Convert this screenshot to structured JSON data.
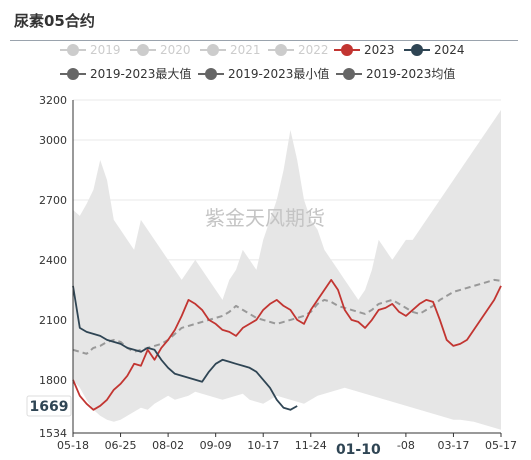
{
  "title": "尿素05合约",
  "watermark": "紫金天风期货",
  "legend": [
    {
      "name": "2019",
      "color": "#cccccc",
      "active": false
    },
    {
      "name": "2020",
      "color": "#cccccc",
      "active": false
    },
    {
      "name": "2021",
      "color": "#cccccc",
      "active": false
    },
    {
      "name": "2022",
      "color": "#cccccc",
      "active": false
    },
    {
      "name": "2023",
      "color": "#c23531",
      "active": true
    },
    {
      "name": "2024",
      "color": "#2f4554",
      "active": true
    },
    {
      "name": "2019-2023最大值",
      "color": "#666666",
      "active": true
    },
    {
      "name": "2019-2023最小值",
      "color": "#666666",
      "active": true
    },
    {
      "name": "2019-2023均值",
      "color": "#666666",
      "active": true
    }
  ],
  "chart_data": {
    "type": "line",
    "y_axis": {
      "min": 1534,
      "max": 3200,
      "ticks": [
        1534,
        1800,
        2100,
        2400,
        2700,
        3000,
        3200
      ]
    },
    "x_axis": {
      "labels": [
        "05-18",
        "06-25",
        "08-02",
        "09-09",
        "10-17",
        "11-24",
        "01-10",
        "-08",
        "03-17",
        "05-17"
      ],
      "highlight": "01-10"
    },
    "value_label": "1669",
    "grid": true,
    "series": [
      {
        "name": "2019-2023最大值",
        "role": "band_upper",
        "color": "#e6e6e6",
        "values": [
          2650,
          2620,
          2680,
          2750,
          2900,
          2800,
          2600,
          2550,
          2500,
          2450,
          2600,
          2550,
          2500,
          2450,
          2400,
          2350,
          2300,
          2350,
          2400,
          2350,
          2300,
          2250,
          2200,
          2300,
          2350,
          2450,
          2400,
          2350,
          2500,
          2600,
          2700,
          2850,
          3050,
          2900,
          2700,
          2600,
          2550,
          2450,
          2400,
          2350,
          2300,
          2250,
          2200,
          2250,
          2350,
          2500,
          2450,
          2400,
          2450,
          2500,
          2500,
          2550,
          2600,
          2650,
          2700,
          2750,
          2800,
          2850,
          2900,
          2950,
          3000,
          3050,
          3100,
          3150
        ]
      },
      {
        "name": "2019-2023最小值",
        "role": "band_lower",
        "color": "#e6e6e6",
        "values": [
          1800,
          1760,
          1700,
          1650,
          1620,
          1600,
          1590,
          1600,
          1620,
          1640,
          1660,
          1650,
          1680,
          1700,
          1720,
          1700,
          1710,
          1720,
          1740,
          1730,
          1720,
          1710,
          1700,
          1710,
          1720,
          1730,
          1700,
          1690,
          1680,
          1700,
          1720,
          1710,
          1700,
          1690,
          1680,
          1700,
          1720,
          1730,
          1740,
          1750,
          1760,
          1750,
          1740,
          1730,
          1720,
          1710,
          1700,
          1690,
          1680,
          1670,
          1660,
          1650,
          1640,
          1630,
          1620,
          1610,
          1600,
          1600,
          1595,
          1590,
          1580,
          1570,
          1560,
          1550
        ]
      },
      {
        "name": "2019-2023均值",
        "role": "dashed",
        "color": "#999999",
        "values": [
          1950,
          1940,
          1930,
          1960,
          1970,
          1990,
          2000,
          1990,
          1960,
          1940,
          1950,
          1960,
          1970,
          1980,
          2000,
          2030,
          2060,
          2070,
          2080,
          2090,
          2100,
          2110,
          2120,
          2140,
          2170,
          2150,
          2130,
          2110,
          2100,
          2090,
          2080,
          2090,
          2100,
          2110,
          2120,
          2140,
          2180,
          2200,
          2190,
          2170,
          2160,
          2150,
          2140,
          2130,
          2150,
          2180,
          2190,
          2200,
          2180,
          2160,
          2140,
          2130,
          2150,
          2170,
          2200,
          2220,
          2240,
          2250,
          2260,
          2270,
          2280,
          2290,
          2300,
          2295
        ]
      },
      {
        "name": "2023",
        "role": "line",
        "color": "#c23531",
        "values": [
          1800,
          1720,
          1680,
          1650,
          1670,
          1700,
          1750,
          1780,
          1820,
          1880,
          1870,
          1950,
          1900,
          1960,
          2000,
          2050,
          2120,
          2200,
          2180,
          2150,
          2100,
          2080,
          2050,
          2040,
          2020,
          2060,
          2080,
          2100,
          2150,
          2180,
          2200,
          2170,
          2150,
          2100,
          2080,
          2150,
          2200,
          2250,
          2300,
          2250,
          2150,
          2100,
          2090,
          2060,
          2100,
          2150,
          2160,
          2180,
          2140,
          2120,
          2150,
          2180,
          2200,
          2190,
          2100,
          2000,
          1970,
          1980,
          2000,
          2050,
          2100,
          2150,
          2200,
          2270
        ]
      },
      {
        "name": "2024",
        "role": "line",
        "color": "#2f4554",
        "values": [
          2270,
          2060,
          2040,
          2030,
          2020,
          2000,
          1990,
          1980,
          1960,
          1950,
          1940,
          1960,
          1950,
          1900,
          1860,
          1830,
          1820,
          1810,
          1800,
          1790,
          1840,
          1880,
          1900,
          1890,
          1880,
          1870,
          1860,
          1840,
          1800,
          1760,
          1700,
          1660,
          1650,
          1669
        ]
      }
    ]
  }
}
